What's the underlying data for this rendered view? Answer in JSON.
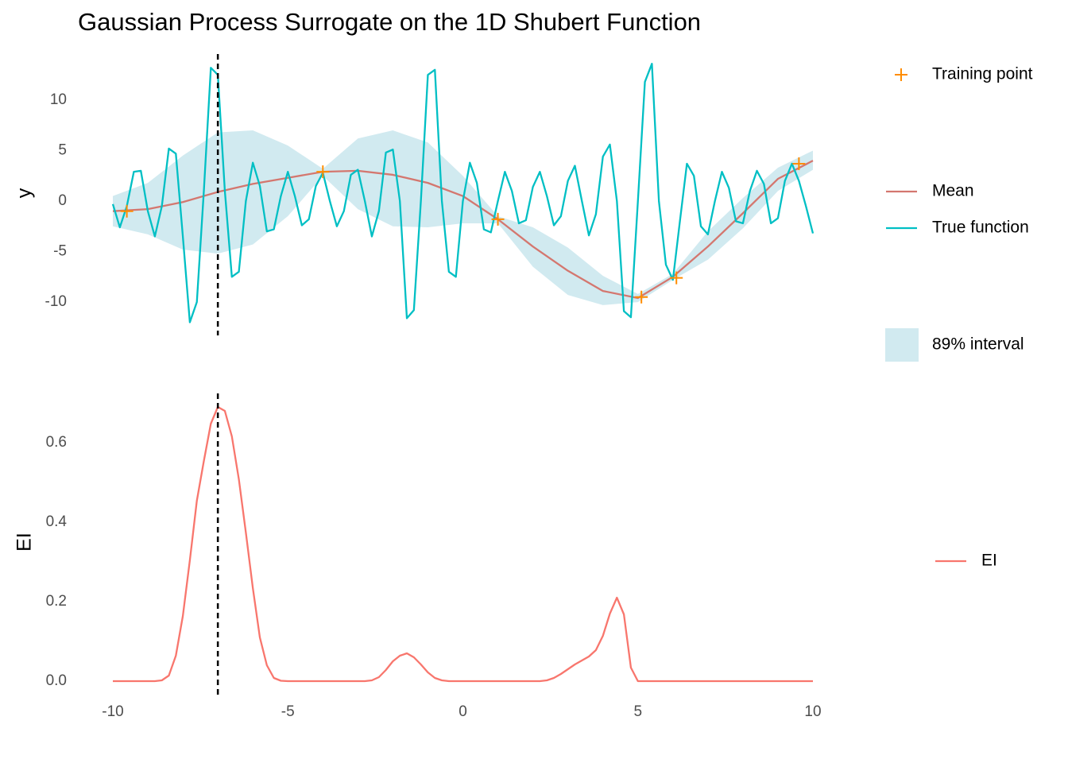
{
  "chart_data": [
    {
      "type": "line",
      "title": "Gaussian Process Surrogate on the 1D Shubert Function",
      "ylabel": "y",
      "xlim": [
        -10,
        10
      ],
      "ylim": [
        -13.3,
        14.4
      ],
      "yticks": [
        -10,
        -5,
        0,
        5,
        10
      ],
      "grid": false,
      "vline": -7,
      "series": [
        {
          "name": "89% interval",
          "kind": "band",
          "color": "#d1eaf0",
          "x": [
            -10,
            -9,
            -8,
            -7,
            -6,
            -5,
            -4,
            -3,
            -2,
            -1,
            0,
            1,
            2,
            3,
            4,
            5,
            6,
            7,
            8,
            9,
            10
          ],
          "lower": [
            -2.5,
            -3.3,
            -4.8,
            -5.2,
            -4.3,
            -1.5,
            2.5,
            -0.8,
            -2.5,
            -2.6,
            -2.2,
            -2.2,
            -6.5,
            -9.3,
            -10.3,
            -10.0,
            -7.8,
            -5.8,
            -2.7,
            1.0,
            3.1
          ],
          "upper": [
            0.5,
            1.8,
            4.5,
            6.8,
            7.0,
            5.5,
            3.2,
            6.2,
            7.0,
            5.8,
            2.5,
            -1.5,
            -2.6,
            -4.6,
            -7.4,
            -9.2,
            -7.2,
            -3.0,
            0.3,
            3.3,
            5.0
          ]
        },
        {
          "name": "Mean",
          "kind": "line",
          "color": "#d4776f",
          "x": [
            -10,
            -9,
            -8,
            -7,
            -6,
            -5,
            -4,
            -3,
            -2,
            -1,
            0,
            1,
            2,
            3,
            4,
            5,
            6,
            7,
            8,
            9,
            10
          ],
          "values": [
            -1.0,
            -0.8,
            -0.1,
            0.9,
            1.7,
            2.3,
            2.9,
            3.0,
            2.6,
            1.8,
            0.5,
            -1.8,
            -4.5,
            -6.9,
            -8.9,
            -9.6,
            -7.5,
            -4.5,
            -1.2,
            2.2,
            4.0
          ]
        },
        {
          "name": "True function",
          "kind": "line",
          "color": "#00bfc4",
          "x": [
            -10,
            -9.8,
            -9.6,
            -9.4,
            -9.2,
            -9,
            -8.8,
            -8.6,
            -8.4,
            -8.2,
            -8,
            -7.8,
            -7.6,
            -7.4,
            -7.2,
            -7,
            -6.8,
            -6.6,
            -6.4,
            -6.2,
            -6,
            -5.8,
            -5.6,
            -5.4,
            -5.2,
            -5,
            -4.8,
            -4.6,
            -4.4,
            -4.2,
            -4,
            -3.8,
            -3.6,
            -3.4,
            -3.2,
            -3,
            -2.8,
            -2.6,
            -2.4,
            -2.2,
            -2,
            -1.8,
            -1.6,
            -1.4,
            -1.2,
            -1,
            -0.8,
            -0.6,
            -0.4,
            -0.2,
            0,
            0.2,
            0.4,
            0.6,
            0.8,
            1,
            1.2,
            1.4,
            1.6,
            1.8,
            2,
            2.2,
            2.4,
            2.6,
            2.8,
            3,
            3.2,
            3.4,
            3.6,
            3.8,
            4,
            4.2,
            4.4,
            4.6,
            4.8,
            5,
            5.2,
            5.4,
            5.6,
            5.8,
            6,
            6.2,
            6.4,
            6.6,
            6.8,
            7,
            7.2,
            7.4,
            7.6,
            7.8,
            8,
            8.2,
            8.4,
            8.6,
            8.8,
            9,
            9.2,
            9.4,
            9.6,
            9.8,
            10
          ],
          "values": [
            -0.3,
            -2.6,
            -0.5,
            2.9,
            3.0,
            -1.0,
            -3.5,
            -0.5,
            5.2,
            4.7,
            -3.5,
            -12.0,
            -10.0,
            1.0,
            13.2,
            12.5,
            1.0,
            -7.5,
            -7.0,
            0,
            3.8,
            1.5,
            -3.0,
            -2.8,
            0.5,
            2.9,
            0.5,
            -2.4,
            -1.8,
            1.5,
            2.8,
            0,
            -2.5,
            -1.0,
            2.6,
            3.1,
            0,
            -3.5,
            -1.0,
            4.8,
            5.1,
            0,
            -11.6,
            -10.8,
            0,
            12.5,
            13.0,
            0,
            -7.0,
            -7.5,
            0,
            3.8,
            1.8,
            -2.8,
            -3.1,
            0,
            2.9,
            1.0,
            -2.2,
            -1.9,
            1.4,
            2.9,
            0.5,
            -2.4,
            -1.5,
            2.0,
            3.5,
            0,
            -3.4,
            -1.3,
            4.4,
            5.6,
            0,
            -10.9,
            -11.5,
            0,
            11.8,
            13.6,
            0,
            -6.3,
            -7.8,
            -2,
            3.7,
            2.5,
            -2.5,
            -3.3,
            0,
            2.9,
            1.3,
            -2.0,
            -2.2,
            1.0,
            3.0,
            1.7,
            -2.2,
            -1.7,
            2.0,
            3.7,
            2.0,
            -0.5,
            -3.2
          ]
        },
        {
          "name": "Training point",
          "kind": "scatter",
          "color": "#ff8c00",
          "x": [
            -9.6,
            -4,
            1,
            5.1,
            6.1,
            9.6
          ],
          "values": [
            -1.0,
            2.9,
            -1.8,
            -9.5,
            -7.6,
            3.7
          ]
        }
      ]
    },
    {
      "type": "line",
      "ylabel": "EI",
      "xlim": [
        -10,
        10
      ],
      "ylim": [
        -0.036,
        0.72
      ],
      "xticks": [
        -10,
        -5,
        0,
        5,
        10
      ],
      "yticks": [
        {
          "value": 0,
          "label": "0.0"
        },
        0.2,
        0.4,
        0.6
      ],
      "grid": false,
      "vline": -7,
      "series": [
        {
          "name": "EI",
          "kind": "line",
          "color": "#f8766d",
          "x": [
            -10,
            -9.8,
            -9.6,
            -9.4,
            -9.2,
            -9,
            -8.8,
            -8.6,
            -8.4,
            -8.2,
            -8,
            -7.8,
            -7.6,
            -7.4,
            -7.2,
            -7,
            -6.8,
            -6.6,
            -6.4,
            -6.2,
            -6,
            -5.8,
            -5.6,
            -5.4,
            -5.2,
            -5,
            -4.8,
            -4.6,
            -4.4,
            -4.2,
            -4,
            -3.8,
            -3.6,
            -3.4,
            -3.2,
            -3,
            -2.8,
            -2.6,
            -2.4,
            -2.2,
            -2,
            -1.8,
            -1.6,
            -1.4,
            -1.2,
            -1,
            -0.8,
            -0.6,
            -0.4,
            -0.2,
            0,
            0.2,
            0.4,
            0.6,
            0.8,
            1,
            1.2,
            1.4,
            1.6,
            1.8,
            2,
            2.2,
            2.4,
            2.6,
            2.8,
            3,
            3.2,
            3.4,
            3.6,
            3.8,
            4,
            4.2,
            4.4,
            4.6,
            4.8,
            5,
            5.2,
            5.4,
            5.6,
            5.8,
            6,
            6.2,
            6.4,
            6.6,
            6.8,
            7,
            7.2,
            7.4,
            7.6,
            7.8,
            8,
            8.2,
            8.4,
            8.6,
            8.8,
            9,
            9.2,
            9.4,
            9.6,
            9.8,
            10
          ],
          "values": [
            0,
            0,
            0,
            0,
            0,
            0,
            0,
            0.002,
            0.014,
            0.064,
            0.164,
            0.304,
            0.454,
            0.554,
            0.648,
            0.69,
            0.68,
            0.616,
            0.508,
            0.374,
            0.234,
            0.11,
            0.04,
            0.008,
            0.001,
            0,
            0,
            0,
            0,
            0,
            0,
            0,
            0,
            0,
            0,
            0,
            0,
            0.002,
            0.01,
            0.028,
            0.05,
            0.064,
            0.07,
            0.06,
            0.042,
            0.022,
            0.008,
            0.002,
            0,
            0,
            0,
            0,
            0,
            0,
            0,
            0,
            0,
            0,
            0,
            0,
            0,
            0,
            0.002,
            0.008,
            0.018,
            0.03,
            0.042,
            0.052,
            0.062,
            0.078,
            0.114,
            0.17,
            0.21,
            0.168,
            0.034,
            0,
            0,
            0,
            0,
            0,
            0,
            0,
            0,
            0,
            0,
            0,
            0,
            0,
            0,
            0,
            0,
            0,
            0,
            0,
            0,
            0,
            0,
            0,
            0,
            0,
            0
          ]
        }
      ]
    }
  ]
}
